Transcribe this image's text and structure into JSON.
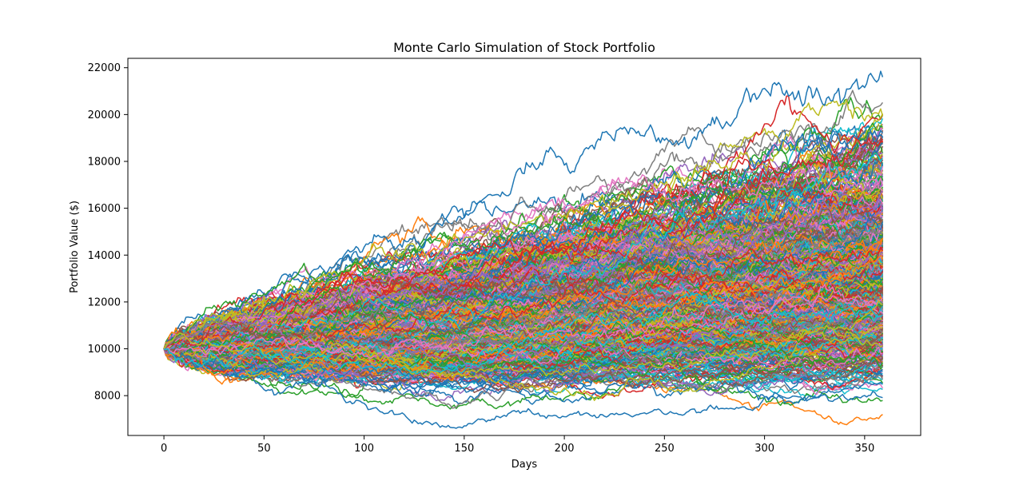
{
  "chart_data": {
    "type": "line",
    "title": "Monte Carlo Simulation of Stock Portfolio",
    "xlabel": "Days",
    "ylabel": "Portfolio Value ($)",
    "xlim": [
      -18,
      378
    ],
    "ylim": [
      6300,
      22400
    ],
    "xticks": [
      0,
      50,
      100,
      150,
      200,
      250,
      300,
      350
    ],
    "yticks": [
      8000,
      10000,
      12000,
      14000,
      16000,
      18000,
      20000,
      22000
    ],
    "days": 360,
    "initial_value": 10000,
    "num_simulations": 1000,
    "final_value_range": [
      7200,
      21600
    ],
    "approx_max_path_peak": 21600,
    "approx_min_path_trough": 7000,
    "grid": false,
    "legend": "none",
    "palette": [
      "#1f77b4",
      "#ff7f0e",
      "#2ca02c",
      "#d62728",
      "#9467bd",
      "#8c564b",
      "#e377c2",
      "#7f7f7f",
      "#bcbd22",
      "#17becf"
    ]
  }
}
